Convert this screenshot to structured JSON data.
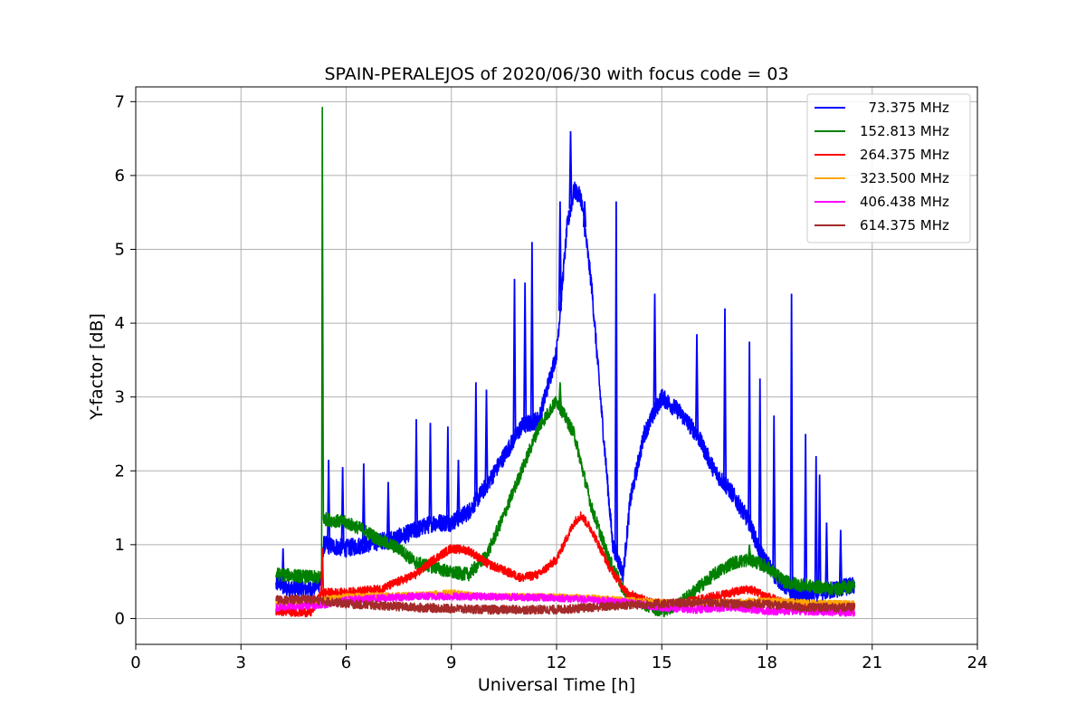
{
  "chart_data": {
    "type": "line",
    "title": "SPAIN-PERALEJOS of 2020/06/30 with focus code = 03",
    "xlabel": "Universal Time [h]",
    "ylabel": "Y-factor [dB]",
    "xlim": [
      0,
      24
    ],
    "ylim": [
      -0.35,
      7.2
    ],
    "xticks": [
      0,
      3,
      6,
      9,
      12,
      15,
      18,
      21,
      24
    ],
    "yticks": [
      0,
      1,
      2,
      3,
      4,
      5,
      6,
      7
    ],
    "grid": true,
    "legend_position": "top-right",
    "x_range_of_data": [
      4.0,
      20.5
    ],
    "series": [
      {
        "name": "  73.375 MHz",
        "color": "#0000ff",
        "noise": 0.12,
        "points": [
          [
            4.0,
            0.45
          ],
          [
            4.1,
            0.5
          ],
          [
            4.2,
            0.42
          ],
          [
            5.0,
            0.4
          ],
          [
            5.3,
            0.5
          ],
          [
            5.35,
            1.0
          ],
          [
            6.0,
            0.95
          ],
          [
            6.5,
            1.0
          ],
          [
            7.0,
            1.05
          ],
          [
            7.5,
            1.1
          ],
          [
            8.0,
            1.2
          ],
          [
            8.5,
            1.3
          ],
          [
            9.0,
            1.3
          ],
          [
            9.5,
            1.45
          ],
          [
            10.0,
            1.8
          ],
          [
            10.5,
            2.2
          ],
          [
            11.0,
            2.6
          ],
          [
            11.5,
            2.7
          ],
          [
            12.0,
            3.6
          ],
          [
            12.3,
            5.3
          ],
          [
            12.5,
            5.8
          ],
          [
            12.7,
            5.7
          ],
          [
            13.0,
            4.5
          ],
          [
            13.3,
            2.7
          ],
          [
            13.6,
            1.0
          ],
          [
            13.9,
            0.6
          ],
          [
            14.1,
            1.6
          ],
          [
            14.5,
            2.5
          ],
          [
            15.0,
            3.0
          ],
          [
            15.5,
            2.8
          ],
          [
            16.0,
            2.5
          ],
          [
            16.5,
            2.0
          ],
          [
            17.0,
            1.7
          ],
          [
            17.5,
            1.3
          ],
          [
            17.8,
            0.9
          ],
          [
            18.2,
            0.6
          ],
          [
            18.8,
            0.3
          ],
          [
            19.5,
            0.35
          ],
          [
            20.0,
            0.4
          ],
          [
            20.5,
            0.45
          ]
        ],
        "spikes": [
          [
            4.2,
            0.95
          ],
          [
            5.5,
            2.15
          ],
          [
            5.9,
            2.05
          ],
          [
            6.5,
            2.1
          ],
          [
            7.2,
            1.85
          ],
          [
            8.0,
            2.7
          ],
          [
            8.4,
            2.65
          ],
          [
            8.9,
            2.6
          ],
          [
            9.2,
            2.15
          ],
          [
            9.7,
            3.2
          ],
          [
            10.0,
            3.1
          ],
          [
            10.8,
            4.6
          ],
          [
            11.1,
            4.55
          ],
          [
            11.3,
            5.1
          ],
          [
            12.1,
            5.65
          ],
          [
            12.4,
            6.6
          ],
          [
            12.8,
            5.65
          ],
          [
            13.7,
            5.65
          ],
          [
            14.8,
            4.4
          ],
          [
            16.0,
            3.85
          ],
          [
            16.8,
            4.2
          ],
          [
            17.5,
            3.75
          ],
          [
            17.8,
            3.25
          ],
          [
            18.2,
            2.75
          ],
          [
            18.7,
            4.4
          ],
          [
            19.1,
            2.5
          ],
          [
            19.4,
            2.2
          ],
          [
            19.5,
            1.95
          ],
          [
            19.7,
            1.3
          ],
          [
            20.1,
            1.2
          ]
        ]
      },
      {
        "name": "152.813 MHz",
        "color": "#008000",
        "noise": 0.09,
        "points": [
          [
            4.0,
            0.6
          ],
          [
            5.3,
            0.55
          ],
          [
            5.32,
            6.85
          ],
          [
            5.35,
            1.35
          ],
          [
            6.0,
            1.3
          ],
          [
            6.5,
            1.2
          ],
          [
            7.0,
            1.05
          ],
          [
            7.5,
            0.95
          ],
          [
            8.0,
            0.75
          ],
          [
            8.5,
            0.7
          ],
          [
            9.0,
            0.62
          ],
          [
            9.5,
            0.6
          ],
          [
            10.0,
            0.85
          ],
          [
            10.5,
            1.4
          ],
          [
            11.0,
            2.0
          ],
          [
            11.5,
            2.6
          ],
          [
            12.0,
            2.95
          ],
          [
            12.5,
            2.5
          ],
          [
            13.0,
            1.5
          ],
          [
            13.5,
            0.8
          ],
          [
            14.0,
            0.3
          ],
          [
            15.0,
            0.1
          ],
          [
            15.5,
            0.2
          ],
          [
            16.0,
            0.4
          ],
          [
            16.5,
            0.6
          ],
          [
            17.0,
            0.75
          ],
          [
            17.5,
            0.8
          ],
          [
            18.0,
            0.7
          ],
          [
            18.5,
            0.5
          ],
          [
            19.0,
            0.45
          ],
          [
            20.0,
            0.4
          ],
          [
            20.5,
            0.45
          ]
        ],
        "spikes": [
          [
            12.1,
            3.2
          ],
          [
            17.5,
            1.0
          ]
        ]
      },
      {
        "name": "264.375 MHz",
        "color": "#ff0000",
        "noise": 0.06,
        "points": [
          [
            4.0,
            0.1
          ],
          [
            5.0,
            0.08
          ],
          [
            5.3,
            0.35
          ],
          [
            6.0,
            0.35
          ],
          [
            7.0,
            0.4
          ],
          [
            8.0,
            0.6
          ],
          [
            8.5,
            0.8
          ],
          [
            9.0,
            0.95
          ],
          [
            9.5,
            0.92
          ],
          [
            10.0,
            0.75
          ],
          [
            10.5,
            0.65
          ],
          [
            11.0,
            0.55
          ],
          [
            11.5,
            0.6
          ],
          [
            12.0,
            0.8
          ],
          [
            12.5,
            1.3
          ],
          [
            12.7,
            1.4
          ],
          [
            13.0,
            1.2
          ],
          [
            13.5,
            0.7
          ],
          [
            14.0,
            0.35
          ],
          [
            14.5,
            0.25
          ],
          [
            15.0,
            0.2
          ],
          [
            15.5,
            0.2
          ],
          [
            16.0,
            0.25
          ],
          [
            17.0,
            0.35
          ],
          [
            17.5,
            0.4
          ],
          [
            18.0,
            0.3
          ],
          [
            18.5,
            0.2
          ],
          [
            19.0,
            0.15
          ],
          [
            20.0,
            0.12
          ],
          [
            20.5,
            0.12
          ]
        ],
        "spikes": [
          [
            5.32,
            0.95
          ]
        ]
      },
      {
        "name": "323.500 MHz",
        "color": "#ffa500",
        "noise": 0.04,
        "points": [
          [
            4.0,
            0.22
          ],
          [
            5.3,
            0.25
          ],
          [
            6.0,
            0.3
          ],
          [
            8.0,
            0.32
          ],
          [
            9.0,
            0.35
          ],
          [
            10.0,
            0.3
          ],
          [
            12.0,
            0.3
          ],
          [
            13.0,
            0.28
          ],
          [
            14.0,
            0.25
          ],
          [
            15.0,
            0.22
          ],
          [
            17.0,
            0.22
          ],
          [
            18.0,
            0.25
          ],
          [
            19.0,
            0.22
          ],
          [
            20.5,
            0.2
          ]
        ],
        "spikes": []
      },
      {
        "name": "406.438 MHz",
        "color": "#ff00ff",
        "noise": 0.05,
        "points": [
          [
            4.0,
            0.15
          ],
          [
            5.3,
            0.18
          ],
          [
            6.0,
            0.25
          ],
          [
            8.0,
            0.3
          ],
          [
            10.0,
            0.3
          ],
          [
            12.0,
            0.28
          ],
          [
            13.0,
            0.25
          ],
          [
            14.0,
            0.22
          ],
          [
            15.0,
            0.15
          ],
          [
            16.0,
            0.12
          ],
          [
            17.0,
            0.15
          ],
          [
            18.0,
            0.1
          ],
          [
            19.0,
            0.1
          ],
          [
            20.5,
            0.08
          ]
        ],
        "spikes": []
      },
      {
        "name": "614.375 MHz",
        "color": "#a52a2a",
        "noise": 0.06,
        "points": [
          [
            4.0,
            0.25
          ],
          [
            5.0,
            0.26
          ],
          [
            6.0,
            0.2
          ],
          [
            8.0,
            0.15
          ],
          [
            10.0,
            0.12
          ],
          [
            12.0,
            0.12
          ],
          [
            13.0,
            0.15
          ],
          [
            14.0,
            0.18
          ],
          [
            15.0,
            0.2
          ],
          [
            16.0,
            0.22
          ],
          [
            17.0,
            0.2
          ],
          [
            18.0,
            0.2
          ],
          [
            19.0,
            0.15
          ],
          [
            20.5,
            0.15
          ]
        ],
        "spikes": []
      }
    ]
  }
}
